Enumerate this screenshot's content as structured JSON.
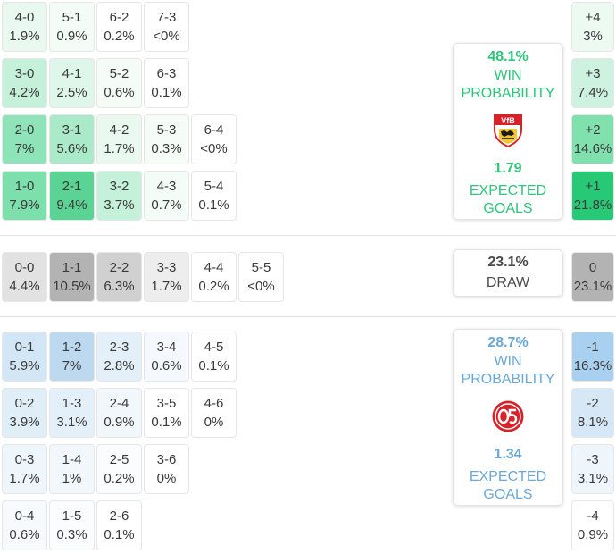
{
  "home_scores": [
    {
      "label": "4-0",
      "pct": "1.9%",
      "bg": "#e9f9f0"
    },
    {
      "label": "5-1",
      "pct": "0.9%",
      "bg": "#f3fcf7"
    },
    {
      "label": "6-2",
      "pct": "0.2%",
      "bg": "#ffffff"
    },
    {
      "label": "7-3",
      "pct": "<0%",
      "bg": "#ffffff"
    },
    {
      "label": "3-0",
      "pct": "4.2%",
      "bg": "#c5f0da"
    },
    {
      "label": "4-1",
      "pct": "2.5%",
      "bg": "#dff7ea"
    },
    {
      "label": "5-2",
      "pct": "0.6%",
      "bg": "#f5fcf8"
    },
    {
      "label": "6-3",
      "pct": "0.1%",
      "bg": "#ffffff"
    },
    {
      "label": "2-0",
      "pct": "7%",
      "bg": "#8fe3b8"
    },
    {
      "label": "3-1",
      "pct": "5.6%",
      "bg": "#abeac9"
    },
    {
      "label": "4-2",
      "pct": "1.7%",
      "bg": "#e9f9f0"
    },
    {
      "label": "5-3",
      "pct": "0.3%",
      "bg": "#f5fcf8"
    },
    {
      "label": "6-4",
      "pct": "<0%",
      "bg": "#ffffff"
    },
    {
      "label": "1-0",
      "pct": "7.9%",
      "bg": "#7cdfac"
    },
    {
      "label": "2-1",
      "pct": "9.4%",
      "bg": "#5ad395"
    },
    {
      "label": "3-2",
      "pct": "3.7%",
      "bg": "#c5f0da"
    },
    {
      "label": "4-3",
      "pct": "0.7%",
      "bg": "#f3fcf7"
    },
    {
      "label": "5-4",
      "pct": "0.1%",
      "bg": "#ffffff"
    }
  ],
  "draw_scores": [
    {
      "label": "0-0",
      "pct": "4.4%",
      "bg": "#e2e2e2"
    },
    {
      "label": "1-1",
      "pct": "10.5%",
      "bg": "#b3b3b3"
    },
    {
      "label": "2-2",
      "pct": "6.3%",
      "bg": "#d0d0d0"
    },
    {
      "label": "3-3",
      "pct": "1.7%",
      "bg": "#ededed"
    },
    {
      "label": "4-4",
      "pct": "0.2%",
      "bg": "#ffffff"
    },
    {
      "label": "5-5",
      "pct": "<0%",
      "bg": "#ffffff"
    }
  ],
  "away_scores": [
    {
      "label": "0-1",
      "pct": "5.9%",
      "bg": "#d2e6f5"
    },
    {
      "label": "1-2",
      "pct": "7%",
      "bg": "#bcd9f0"
    },
    {
      "label": "2-3",
      "pct": "2.8%",
      "bg": "#e4f0f9"
    },
    {
      "label": "3-4",
      "pct": "0.6%",
      "bg": "#f5f9fd"
    },
    {
      "label": "4-5",
      "pct": "0.1%",
      "bg": "#ffffff"
    },
    {
      "label": "0-2",
      "pct": "3.9%",
      "bg": "#e0eef8"
    },
    {
      "label": "1-3",
      "pct": "3.1%",
      "bg": "#e4f0f9"
    },
    {
      "label": "2-4",
      "pct": "0.9%",
      "bg": "#f2f7fc"
    },
    {
      "label": "3-5",
      "pct": "0.1%",
      "bg": "#ffffff"
    },
    {
      "label": "4-6",
      "pct": "0%",
      "bg": "#ffffff"
    },
    {
      "label": "0-3",
      "pct": "1.7%",
      "bg": "#eef5fb"
    },
    {
      "label": "1-4",
      "pct": "1%",
      "bg": "#f2f7fc"
    },
    {
      "label": "2-5",
      "pct": "0.2%",
      "bg": "#fafcfe"
    },
    {
      "label": "3-6",
      "pct": "0%",
      "bg": "#ffffff"
    },
    {
      "label": "0-4",
      "pct": "0.6%",
      "bg": "#f7fafd"
    },
    {
      "label": "1-5",
      "pct": "0.3%",
      "bg": "#fafcfe"
    },
    {
      "label": "2-6",
      "pct": "0.1%",
      "bg": "#ffffff"
    }
  ],
  "margins": [
    {
      "label": "+4",
      "pct": "3%",
      "bg": "#ecfaf2"
    },
    {
      "label": "+3",
      "pct": "7.4%",
      "bg": "#cdf2df"
    },
    {
      "label": "+2",
      "pct": "14.6%",
      "bg": "#80e0ae"
    },
    {
      "label": "+1",
      "pct": "21.8%",
      "bg": "#27c977"
    },
    {
      "label": "0",
      "pct": "23.1%",
      "bg": "#b3b3b3"
    },
    {
      "label": "-1",
      "pct": "16.3%",
      "bg": "#a9d0ee"
    },
    {
      "label": "-2",
      "pct": "8.1%",
      "bg": "#d6e8f6"
    },
    {
      "label": "-3",
      "pct": "3.1%",
      "bg": "#eef5fb"
    },
    {
      "label": "-4",
      "pct": "0.9%",
      "bg": "#ffffff"
    }
  ],
  "home_card": {
    "win_pct": "48.1%",
    "win_label_1": "WIN",
    "win_label_2": "PROBABILITY",
    "crest_icon": "vfb-stuttgart-crest-icon",
    "xg": "1.79",
    "xg_label_1": "EXPECTED",
    "xg_label_2": "GOALS",
    "color": "#2ec47a"
  },
  "draw_card": {
    "pct": "23.1%",
    "label": "DRAW"
  },
  "away_card": {
    "win_pct": "28.7%",
    "win_label_1": "WIN",
    "win_label_2": "PROBABILITY",
    "crest_icon": "mainz-05-crest-icon",
    "xg": "1.34",
    "xg_label_1": "EXPECTED",
    "xg_label_2": "GOALS",
    "color": "#6aa8d4"
  }
}
